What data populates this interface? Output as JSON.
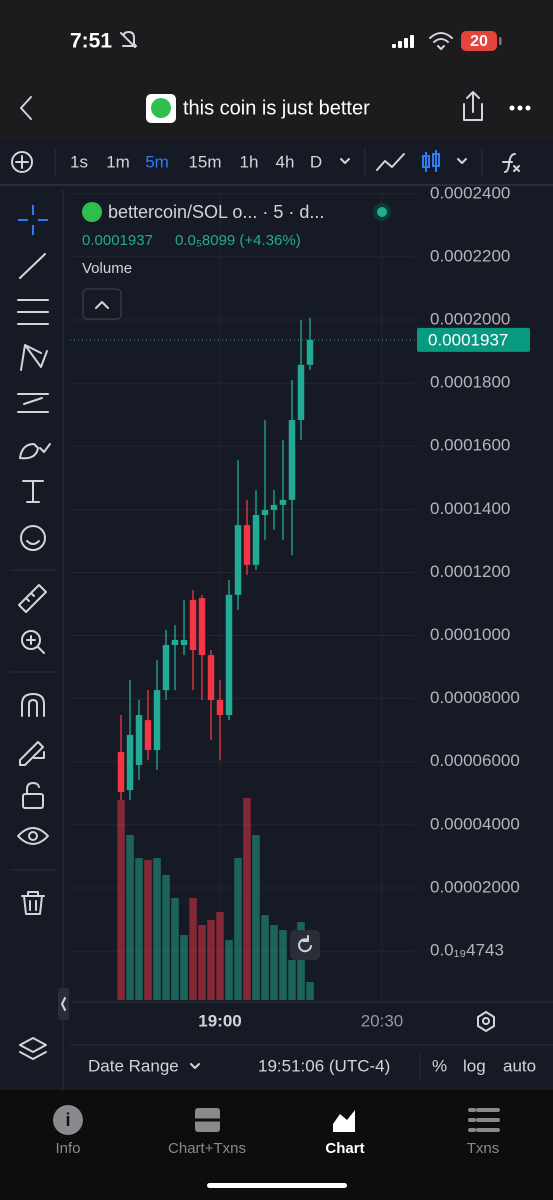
{
  "status_bar": {
    "time": "7:51",
    "battery": "20"
  },
  "header": {
    "title": "this coin is just better"
  },
  "toolbar": {
    "intervals": [
      "1s",
      "1m",
      "5m",
      "15m",
      "1h",
      "4h",
      "D"
    ],
    "active": 2
  },
  "chart_data": {
    "type": "candlestick",
    "title": "bettercoin/SOL o... · 5 · d...",
    "last_price": 0.0001937,
    "change": "0.0₅8099 (+4.36%)",
    "volume_label": "Volume",
    "up_color": "#22ab94",
    "down_color": "#f23645",
    "open": [
      6.31e-05,
      5.1e-05,
      5.9e-05,
      7.32e-05,
      6.37e-05,
      8.27e-05,
      9.7e-05,
      9.7e-05,
      0.0001113,
      0.0001119,
      9.38e-05,
      7.96e-05,
      7.48e-05,
      0.0001129,
      0.000135,
      0.0001224,
      0.0001382,
      0.0001398,
      0.0001414,
      0.000143,
      0.0001683,
      0.0001858
    ],
    "high": [
      7.48e-05,
      8.59e-05,
      7.96e-05,
      8.27e-05,
      9.22e-05,
      0.0001018,
      0.0001033,
      0.0001113,
      0.0001144,
      0.0001129,
      9.54e-05,
      8.59e-05,
      0.0001176,
      0.0001556,
      0.000143,
      0.0001461,
      0.0001683,
      0.0001461,
      0.000162,
      0.000181,
      0.0002,
      0.0002007
    ],
    "low": [
      4.79e-05,
      4.79e-05,
      5.42e-05,
      6.05e-05,
      5.74e-05,
      7.96e-05,
      8.27e-05,
      9.38e-05,
      8.27e-05,
      7.96e-05,
      6.69e-05,
      6.05e-05,
      7.32e-05,
      0.0001081,
      0.0001192,
      0.0001208,
      0.0001303,
      0.0001335,
      0.0001303,
      0.0001255,
      0.000162,
      0.0001842
    ],
    "close": [
      5.04e-05,
      6.85e-05,
      7.48e-05,
      6.37e-05,
      8.27e-05,
      9.7e-05,
      9.86e-05,
      9.86e-05,
      9.54e-05,
      9.38e-05,
      7.96e-05,
      7.48e-05,
      0.0001129,
      0.000135,
      0.0001224,
      0.0001382,
      0.0001398,
      0.0001414,
      0.000143,
      0.0001683,
      0.0001858,
      0.0001937
    ],
    "volume": [
      200,
      165,
      142,
      140,
      142,
      125,
      102,
      65,
      102,
      75,
      80,
      88,
      60,
      142,
      202,
      165,
      85,
      75,
      70,
      40,
      78,
      18
    ],
    "xlim": [
      -5.67,
      32.67
    ],
    "xticks": [
      {
        "value": 11,
        "label": "19:00"
      },
      {
        "value": 29,
        "label": "20:30"
      }
    ],
    "ylim": [
      -1.55e-05,
      0.0002412
    ],
    "yticks": [
      {
        "value": 0.00024,
        "label": "0.0002400"
      },
      {
        "value": 0.00022,
        "label": "0.0002200"
      },
      {
        "value": 0.0002,
        "label": "0.0002000"
      },
      {
        "value": 0.00018,
        "label": "0.0001800"
      },
      {
        "value": 0.00016,
        "label": "0.0001600"
      },
      {
        "value": 0.00014,
        "label": "0.0001400"
      },
      {
        "value": 0.00012,
        "label": "0.0001200"
      },
      {
        "value": 0.0001,
        "label": "0.0001000"
      },
      {
        "value": 8e-05,
        "label": "0.00008000"
      },
      {
        "value": 6e-05,
        "label": "0.00006000"
      },
      {
        "value": 4e-05,
        "label": "0.00004000"
      },
      {
        "value": 2e-05,
        "label": "0.00002000"
      },
      {
        "value": 4.743e-20,
        "label": "0.0₁₉4743"
      }
    ],
    "grid": true
  },
  "date_bar": {
    "range": "Date Range",
    "time": "19:51:06 (UTC-4)",
    "percent": "%",
    "log": "log",
    "auto": "auto"
  },
  "nav": {
    "items": [
      "Info",
      "Chart+Txns",
      "Chart",
      "Txns"
    ],
    "active": 2
  }
}
